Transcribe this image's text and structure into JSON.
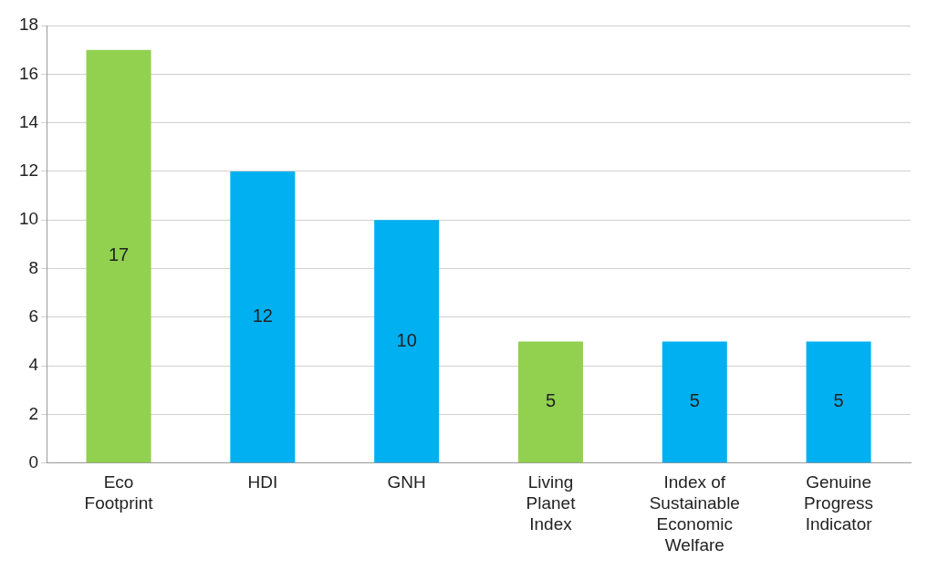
{
  "chart_data": {
    "type": "bar",
    "categories": [
      "Eco Footprint",
      "HDI",
      "GNH",
      "Living Planet Index",
      "Index of Sustainable Economic Welfare",
      "Genuine Progress Indicator"
    ],
    "values": [
      17,
      12,
      10,
      5,
      5,
      5
    ],
    "colors": [
      "#92d050",
      "#00b0f0",
      "#00b0f0",
      "#92d050",
      "#00b0f0",
      "#00b0f0"
    ],
    "ylim": [
      0,
      18
    ],
    "yticks": [
      0,
      2,
      4,
      6,
      8,
      10,
      12,
      14,
      16,
      18
    ],
    "grid": "y",
    "data_labels": true,
    "legend": false
  }
}
